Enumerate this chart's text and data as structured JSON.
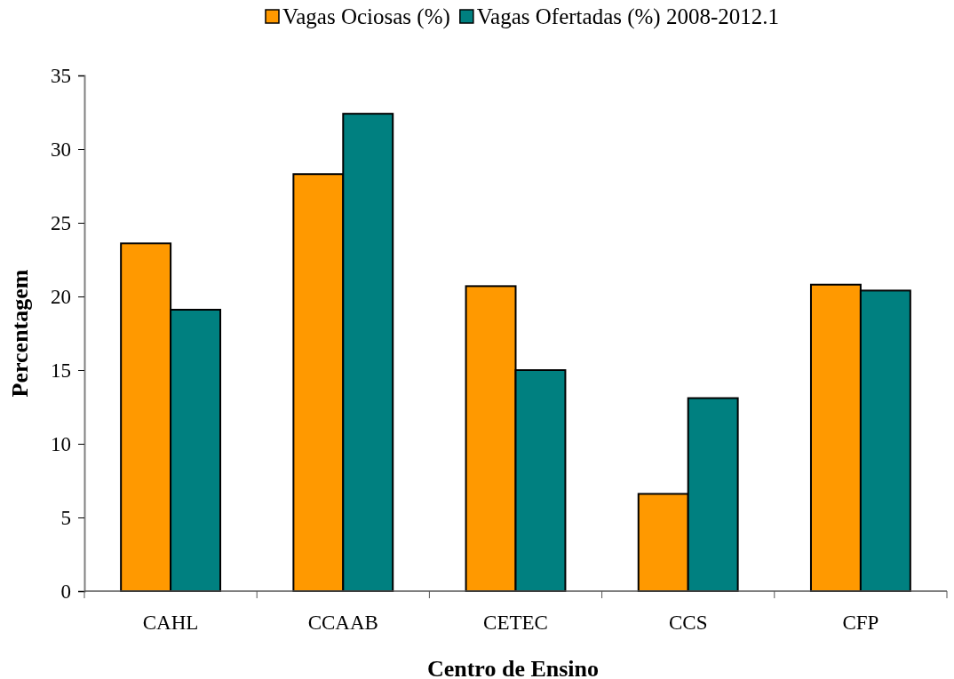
{
  "chart_data": {
    "type": "bar",
    "xlabel": "Centro de Ensino",
    "ylabel": "Percentagem",
    "categories": [
      "CAHL",
      "CCAAB",
      "CETEC",
      "CCS",
      "CFP"
    ],
    "series": [
      {
        "name": "Vagas Ociosas (%)",
        "color": "#ff9900",
        "values": [
          23.6,
          28.3,
          20.7,
          6.6,
          20.8
        ]
      },
      {
        "name": "Vagas Ofertadas (%) 2008-2012.1",
        "color": "#008080",
        "values": [
          19.1,
          32.4,
          15.0,
          13.1,
          20.4
        ]
      }
    ],
    "ylim": [
      0,
      35
    ],
    "yticks": [
      0,
      5,
      10,
      15,
      20,
      25,
      30,
      35
    ],
    "grid": false,
    "legend": "top"
  }
}
